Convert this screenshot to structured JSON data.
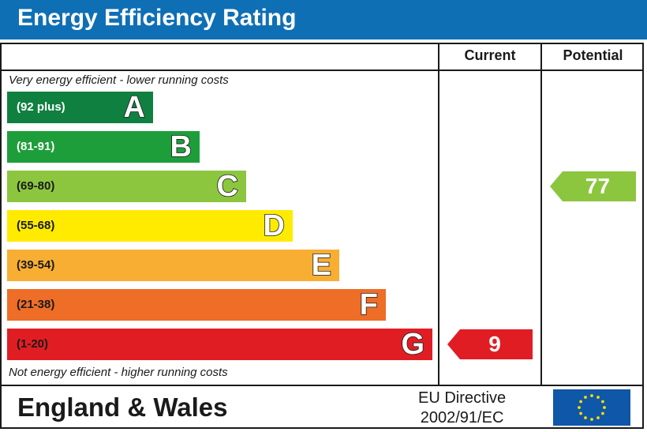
{
  "title": "Energy Efficiency Rating",
  "columns": {
    "current": "Current",
    "potential": "Potential"
  },
  "notes": {
    "top": "Very energy efficient - lower running costs",
    "bottom": "Not energy efficient - higher running costs"
  },
  "chart_data": {
    "type": "bar",
    "title": "Energy Efficiency Rating",
    "categories": [
      "A",
      "B",
      "C",
      "D",
      "E",
      "F",
      "G"
    ],
    "bands": [
      {
        "letter": "A",
        "range": "(92 plus)",
        "color": "#108040",
        "text_color": "#ffffff"
      },
      {
        "letter": "B",
        "range": "(81-91)",
        "color": "#1e9e3a",
        "text_color": "#ffffff"
      },
      {
        "letter": "C",
        "range": "(69-80)",
        "color": "#8cc63f",
        "text_color": "#1a1a1a"
      },
      {
        "letter": "D",
        "range": "(55-68)",
        "color": "#ffeb00",
        "text_color": "#1a1a1a"
      },
      {
        "letter": "E",
        "range": "(39-54)",
        "color": "#f7ae33",
        "text_color": "#1a1a1a"
      },
      {
        "letter": "F",
        "range": "(21-38)",
        "color": "#ee6d27",
        "text_color": "#1a1a1a"
      },
      {
        "letter": "G",
        "range": "(1-20)",
        "color": "#e11d24",
        "text_color": "#1a1a1a"
      }
    ],
    "current": {
      "value": 9,
      "band": "G",
      "color": "#e11d24"
    },
    "potential": {
      "value": 77,
      "band": "C",
      "color": "#8cc63f"
    }
  },
  "footer": {
    "region": "England & Wales",
    "directive_line1": "EU Directive",
    "directive_line2": "2002/91/EC",
    "flag_icon": "eu-flag-icon"
  }
}
